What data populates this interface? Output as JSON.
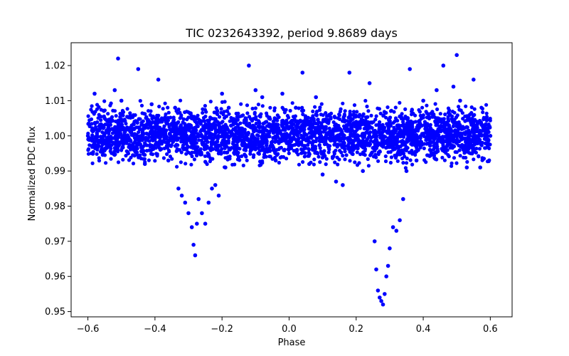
{
  "chart_data": {
    "type": "scatter",
    "title": "TIC 0232643392, period 9.8689 days",
    "xlabel": "Phase",
    "ylabel": "Normalized PDC flux",
    "xlim": [
      -0.65,
      0.665
    ],
    "ylim": [
      0.9485,
      1.0265
    ],
    "xticks": [
      -0.6,
      -0.4,
      -0.2,
      0.0,
      0.2,
      0.4,
      0.6
    ],
    "xtick_labels": [
      "−0.6",
      "−0.4",
      "−0.2",
      "0.0",
      "0.2",
      "0.4",
      "0.6"
    ],
    "yticks": [
      0.95,
      0.96,
      0.97,
      0.98,
      0.99,
      1.0,
      1.01,
      1.02
    ],
    "ytick_labels": [
      "0.95",
      "0.96",
      "0.97",
      "0.98",
      "0.99",
      "1.00",
      "1.01",
      "1.02"
    ],
    "grid": false,
    "marker_color": "#0000ff",
    "series": [
      {
        "name": "flux",
        "x": [
          -0.6,
          -0.58,
          -0.55,
          -0.52,
          -0.51,
          -0.5,
          -0.48,
          -0.45,
          -0.43,
          -0.41,
          -0.39,
          -0.36,
          -0.34,
          -0.33,
          -0.32,
          -0.31,
          -0.3,
          -0.29,
          -0.285,
          -0.28,
          -0.275,
          -0.27,
          -0.26,
          -0.25,
          -0.24,
          -0.23,
          -0.22,
          -0.21,
          -0.2,
          -0.19,
          -0.18,
          -0.15,
          -0.12,
          -0.1,
          -0.08,
          -0.06,
          -0.04,
          -0.02,
          0.0,
          0.02,
          0.04,
          0.06,
          0.08,
          0.1,
          0.12,
          0.14,
          0.16,
          0.18,
          0.2,
          0.22,
          0.24,
          0.255,
          0.26,
          0.265,
          0.27,
          0.275,
          0.28,
          0.285,
          0.29,
          0.295,
          0.3,
          0.31,
          0.32,
          0.33,
          0.34,
          0.35,
          0.36,
          0.38,
          0.4,
          0.42,
          0.44,
          0.46,
          0.48,
          0.49,
          0.5,
          0.51,
          0.53,
          0.55,
          0.57,
          0.6
        ],
        "y": [
          1.0,
          1.012,
          1.005,
          1.013,
          1.022,
          1.01,
          0.995,
          1.019,
          0.992,
          1.009,
          1.016,
          0.993,
          1.008,
          0.985,
          0.983,
          0.981,
          0.978,
          0.974,
          0.969,
          0.966,
          0.975,
          0.982,
          0.978,
          0.975,
          0.981,
          0.985,
          0.986,
          0.983,
          1.012,
          0.991,
          1.008,
          0.994,
          1.02,
          1.013,
          1.011,
          1.005,
          0.993,
          1.012,
          0.997,
          1.008,
          1.018,
          0.992,
          1.011,
          0.989,
          1.006,
          0.987,
          0.986,
          1.018,
          1.004,
          0.99,
          1.015,
          0.97,
          0.962,
          0.956,
          0.954,
          0.953,
          0.952,
          0.955,
          0.96,
          0.963,
          0.968,
          0.974,
          0.973,
          0.976,
          0.982,
          0.99,
          1.019,
          0.993,
          1.01,
          0.996,
          1.013,
          1.02,
          1.006,
          1.014,
          1.023,
          1.01,
          0.991,
          1.016,
          0.991,
          1.0
        ]
      }
    ]
  }
}
